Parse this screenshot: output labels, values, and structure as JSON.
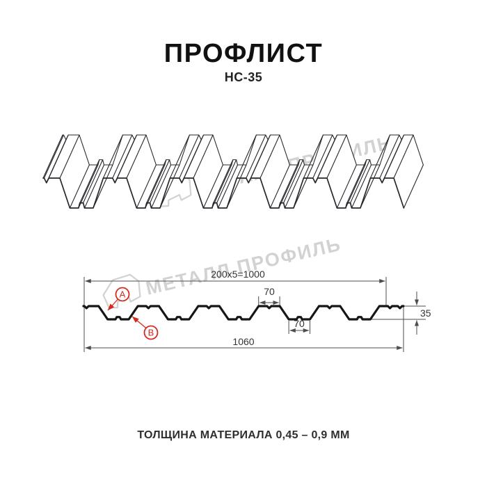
{
  "title": "ПРОФЛИСТ",
  "subtitle": "НС-35",
  "watermark": {
    "text": "МЕТАЛЛ ПРОФИЛЬ"
  },
  "diagram": {
    "dimensions": {
      "top_span": "200x5=1000",
      "crest_width": "70",
      "valley_width": "70",
      "full_width": "1060",
      "height": "35"
    },
    "callouts": {
      "a": "A",
      "b": "B"
    }
  },
  "footer": {
    "thickness_note": "ТОЛЩИНА МАТЕРИАЛА 0,45 – 0,9 ММ"
  },
  "colors": {
    "accent_red": "#d6281e",
    "dim": "#4d4d4d",
    "ink": "#26262c",
    "profile": "#161616",
    "watermark": "#d2d2d2"
  }
}
